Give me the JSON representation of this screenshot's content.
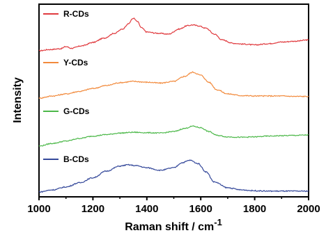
{
  "chart_data": {
    "type": "line",
    "xlabel": "Raman shift / cm",
    "xlabel_superscript": "-1",
    "ylabel": "Intensity",
    "xlim": [
      1000,
      2000
    ],
    "xticks": [
      "1000",
      "1200",
      "1400",
      "1600",
      "1800",
      "2000"
    ],
    "y_ticks_shown": false,
    "grid": false,
    "legend_placement": "inline-left-above-each-curve",
    "series": [
      {
        "name": "R-CDs",
        "color": "#e03a3e",
        "x": [
          1000,
          1040,
          1080,
          1100,
          1120,
          1160,
          1200,
          1240,
          1280,
          1310,
          1330,
          1350,
          1365,
          1380,
          1400,
          1440,
          1480,
          1520,
          1550,
          1570,
          1590,
          1620,
          1650,
          1680,
          1720,
          1760,
          1800,
          1850,
          1900,
          1950,
          2000
        ],
        "y": [
          0.0,
          0.03,
          0.05,
          0.1,
          0.06,
          0.12,
          0.2,
          0.3,
          0.42,
          0.52,
          0.64,
          0.78,
          0.7,
          0.55,
          0.45,
          0.42,
          0.4,
          0.52,
          0.6,
          0.62,
          0.6,
          0.54,
          0.4,
          0.26,
          0.18,
          0.16,
          0.14,
          0.17,
          0.21,
          0.23,
          0.26
        ]
      },
      {
        "name": "Y-CDs",
        "color": "#f28a3c",
        "x": [
          1000,
          1050,
          1100,
          1150,
          1200,
          1250,
          1300,
          1350,
          1400,
          1450,
          1500,
          1540,
          1570,
          1600,
          1630,
          1660,
          1700,
          1750,
          1800,
          1850,
          1900,
          1950,
          2000
        ],
        "y": [
          0.0,
          0.05,
          0.1,
          0.16,
          0.23,
          0.3,
          0.37,
          0.4,
          0.38,
          0.36,
          0.4,
          0.52,
          0.62,
          0.55,
          0.38,
          0.2,
          0.1,
          0.06,
          0.05,
          0.05,
          0.05,
          0.04,
          0.04
        ]
      },
      {
        "name": "G-CDs",
        "color": "#4cb849",
        "x": [
          1000,
          1050,
          1100,
          1150,
          1200,
          1250,
          1300,
          1350,
          1400,
          1450,
          1500,
          1540,
          1570,
          1600,
          1630,
          1660,
          1700,
          1750,
          1800,
          1850,
          1900,
          1950,
          2000
        ],
        "y": [
          0.0,
          0.07,
          0.13,
          0.2,
          0.26,
          0.3,
          0.34,
          0.36,
          0.35,
          0.34,
          0.38,
          0.46,
          0.52,
          0.48,
          0.38,
          0.28,
          0.24,
          0.23,
          0.24,
          0.26,
          0.27,
          0.28,
          0.29
        ]
      },
      {
        "name": "B-CDs",
        "color": "#34489a",
        "x": [
          1000,
          1050,
          1100,
          1150,
          1200,
          1250,
          1300,
          1330,
          1360,
          1400,
          1450,
          1500,
          1530,
          1560,
          1590,
          1620,
          1650,
          1700,
          1750,
          1800,
          1850,
          1900,
          1950,
          2000
        ],
        "y": [
          0.0,
          0.05,
          0.12,
          0.22,
          0.34,
          0.5,
          0.62,
          0.65,
          0.63,
          0.58,
          0.52,
          0.58,
          0.7,
          0.76,
          0.68,
          0.48,
          0.24,
          0.1,
          0.05,
          0.03,
          0.02,
          0.02,
          0.02,
          0.02
        ]
      }
    ]
  }
}
